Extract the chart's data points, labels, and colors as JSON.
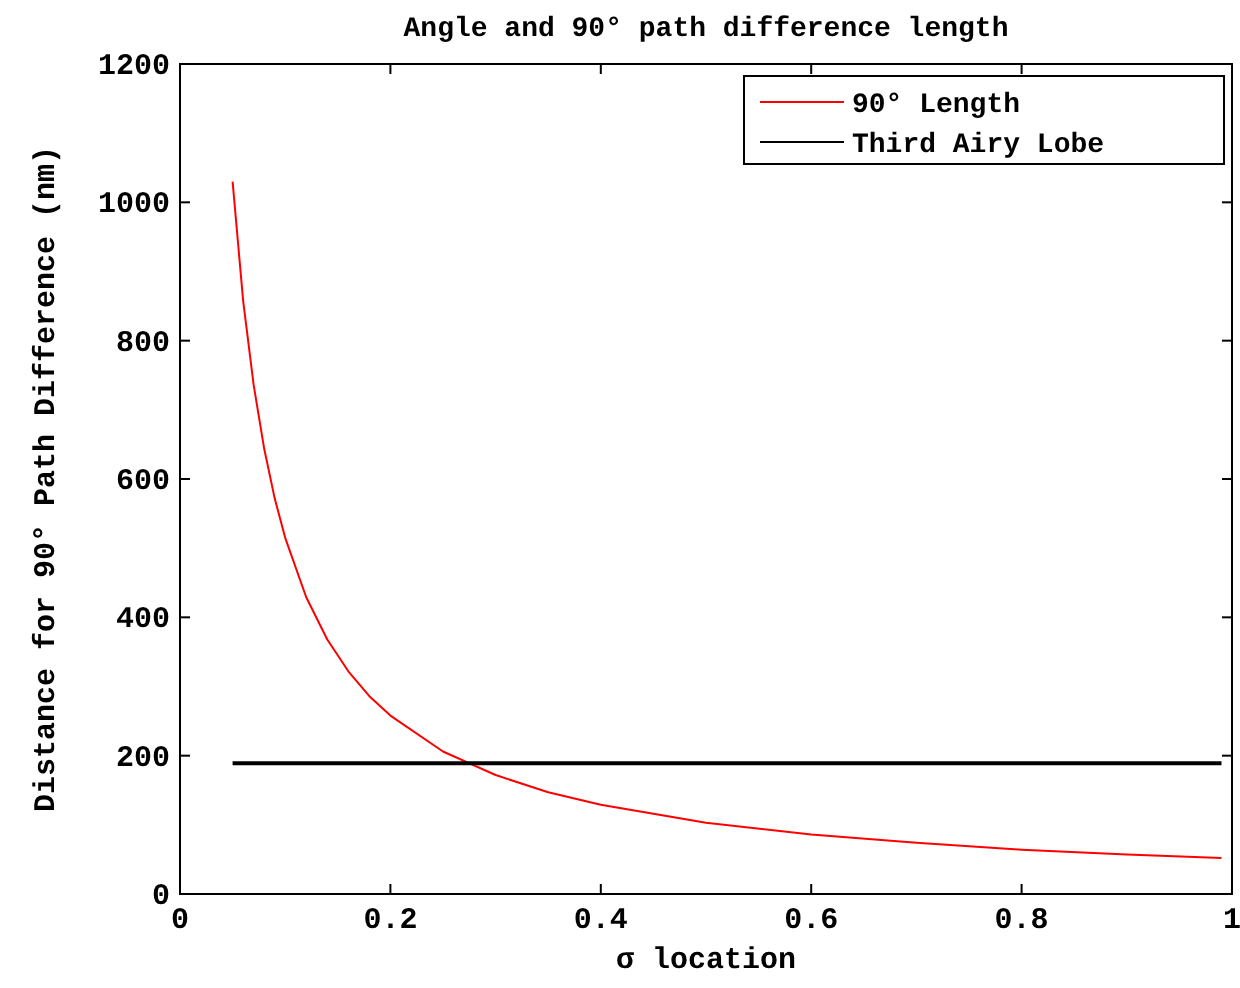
{
  "chart_data": {
    "type": "line",
    "title": "Angle and 90° path difference length",
    "xlabel": "σ location",
    "ylabel": "Distance for 90° Path Difference (nm)",
    "xlim": [
      0,
      1
    ],
    "xticks": [
      0,
      0.2,
      0.4,
      0.6,
      0.8,
      1
    ],
    "ylim": [
      0,
      1200
    ],
    "yticks": [
      0,
      200,
      400,
      600,
      800,
      1000,
      1200
    ],
    "grid": false,
    "legend": "top right",
    "marker": "none",
    "line_style": "solid",
    "series": [
      {
        "name": "90° Length",
        "color": "#ff0000",
        "x": [
          0.05,
          0.06,
          0.07,
          0.08,
          0.09,
          0.1,
          0.12,
          0.14,
          0.16,
          0.18,
          0.2,
          0.25,
          0.3,
          0.35,
          0.4,
          0.5,
          0.6,
          0.7,
          0.8,
          0.9,
          0.99
        ],
        "values": [
          1030,
          858,
          736,
          644,
          572,
          515,
          429,
          368,
          322,
          286,
          258,
          206,
          172,
          147,
          129,
          103,
          86,
          74,
          64,
          57,
          52
        ]
      },
      {
        "name": "Third Airy Lobe",
        "color": "#000000",
        "x": [
          0.05,
          0.99
        ],
        "values": [
          189,
          189
        ]
      }
    ]
  }
}
